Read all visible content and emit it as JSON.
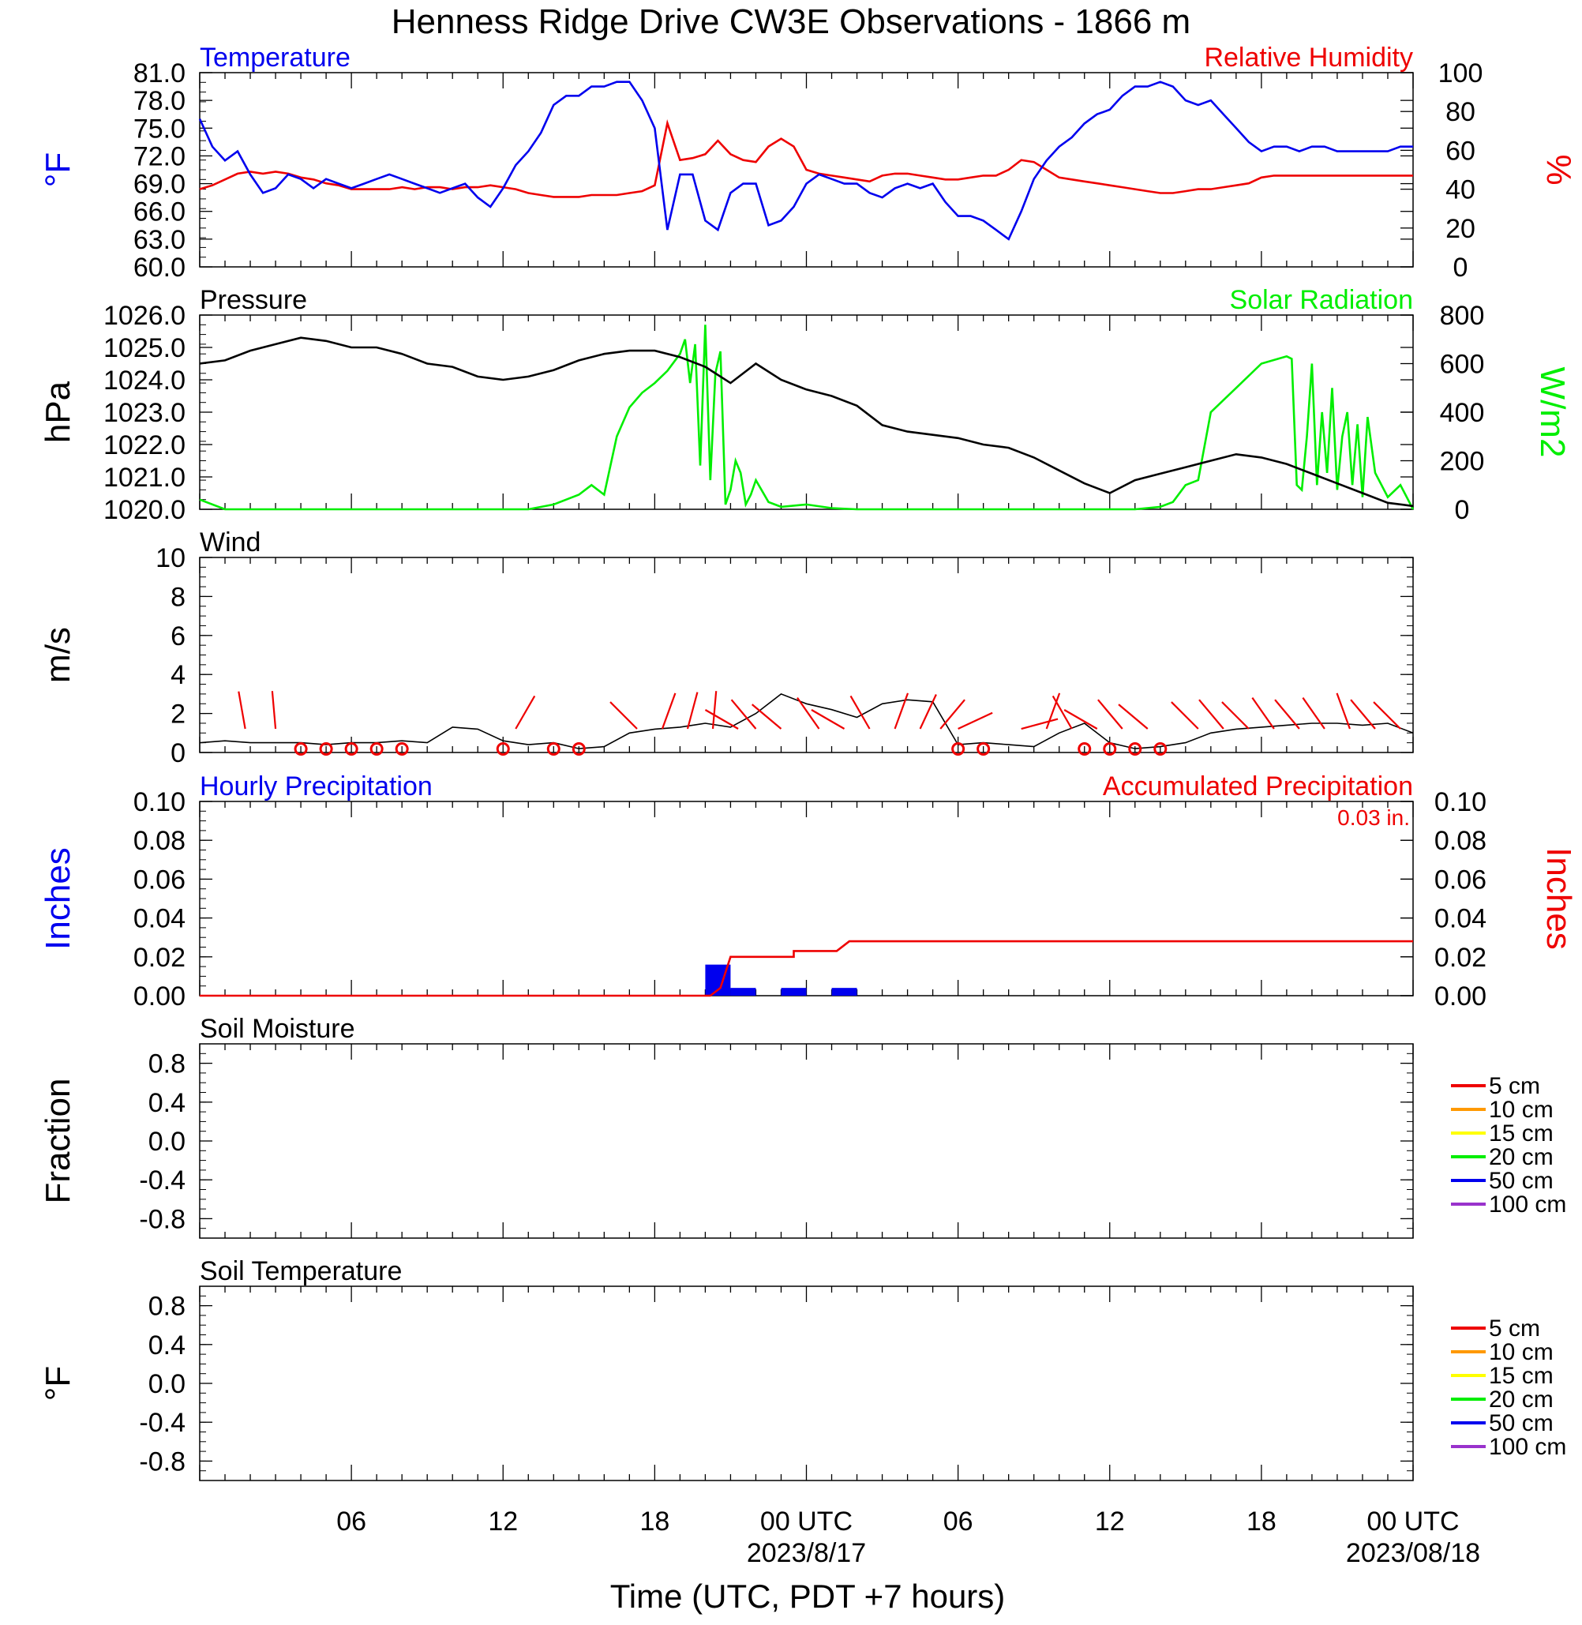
{
  "title": "Henness Ridge Drive CW3E Observations - 1866 m",
  "xlabel": "Time (UTC, PDT +7 hours)",
  "x_axis": {
    "ticks": [
      "06",
      "12",
      "18",
      "00 UTC",
      "06",
      "12",
      "18",
      "00 UTC"
    ],
    "dates": [
      "2023/8/17",
      "2023/08/18"
    ]
  },
  "colors": {
    "blue": "#0000ee",
    "red": "#ee0000",
    "green": "#00ee00",
    "black": "#000000"
  },
  "chart_data": [
    {
      "type": "line",
      "title_left": "Temperature",
      "title_right": "Relative Humidity",
      "ylabel_left": "°F",
      "ylabel_right": "%",
      "y_ticks_left": [
        "81.0",
        "78.0",
        "75.0",
        "72.0",
        "69.0",
        "66.0",
        "63.0",
        "60.0"
      ],
      "y_ticks_right": [
        "100",
        "80",
        "60",
        "40",
        "20",
        "0"
      ],
      "ylim_left": [
        60,
        81
      ],
      "ylim_right": [
        0,
        100
      ],
      "x_hours": [
        0,
        48
      ],
      "series": [
        {
          "name": "Temperature",
          "axis": "left",
          "color": "#0000ee",
          "x": [
            0,
            0.5,
            1,
            1.5,
            2,
            2.5,
            3,
            3.5,
            4,
            4.5,
            5,
            5.5,
            6,
            6.5,
            7,
            7.5,
            8,
            8.5,
            9,
            9.5,
            10,
            10.5,
            11,
            11.5,
            12,
            12.5,
            13,
            13.5,
            14,
            14.5,
            15,
            15.5,
            16,
            16.5,
            17,
            17.5,
            18,
            18.5,
            19,
            19.5,
            20,
            20.5,
            21,
            21.5,
            22,
            22.5,
            23,
            23.5,
            24,
            24.5,
            25,
            25.5,
            26,
            26.5,
            27,
            27.5,
            28,
            28.5,
            29,
            29.5,
            30,
            30.5,
            31,
            31.5,
            32,
            32.5,
            33,
            33.5,
            34,
            34.5,
            35,
            35.5,
            36,
            36.5,
            37,
            37.5,
            38,
            38.5,
            39,
            39.5,
            40,
            40.5,
            41,
            41.5,
            42,
            42.5,
            43,
            43.5,
            44,
            44.5,
            45,
            45.5,
            46,
            46.5,
            47,
            47.5,
            48
          ],
          "values": [
            76,
            73,
            71.5,
            72.5,
            70,
            68,
            68.5,
            70,
            69.5,
            68.5,
            69.5,
            69,
            68.5,
            69,
            69.5,
            70,
            69.5,
            69,
            68.5,
            68,
            68.5,
            69,
            67.5,
            66.5,
            68.5,
            71,
            72.5,
            74.5,
            77.5,
            78.5,
            78.5,
            79.5,
            79.5,
            80,
            80,
            78,
            75,
            64,
            70,
            70,
            65,
            64,
            68,
            69,
            69,
            64.5,
            65,
            66.5,
            69,
            70,
            69.5,
            69,
            69,
            68,
            67.5,
            68.5,
            69,
            68.5,
            69,
            67,
            65.5,
            65.5,
            65,
            64,
            63,
            66,
            69.5,
            71.5,
            73,
            74,
            75.5,
            76.5,
            77,
            78.5,
            79.5,
            79.5,
            80,
            79.5,
            78,
            77.5,
            78,
            76.5,
            75,
            73.5,
            72.5,
            73,
            73,
            72.5,
            73,
            73,
            72.5,
            72.5,
            72.5,
            72.5,
            72.5,
            73,
            73
          ]
        },
        {
          "name": "Relative Humidity",
          "axis": "right",
          "color": "#ee0000",
          "x": [
            0,
            0.5,
            1,
            1.5,
            2,
            2.5,
            3,
            3.5,
            4,
            4.5,
            5,
            5.5,
            6,
            6.5,
            7,
            7.5,
            8,
            8.5,
            9,
            9.5,
            10,
            10.5,
            11,
            11.5,
            12,
            12.5,
            13,
            13.5,
            14,
            14.5,
            15,
            15.5,
            16,
            16.5,
            17,
            17.5,
            18,
            18.5,
            19,
            19.5,
            20,
            20.5,
            21,
            21.5,
            22,
            22.5,
            23,
            23.5,
            24,
            24.5,
            25,
            25.5,
            26,
            26.5,
            27,
            27.5,
            28,
            28.5,
            29,
            29.5,
            30,
            30.5,
            31,
            31.5,
            32,
            32.5,
            33,
            33.5,
            34,
            34.5,
            35,
            35.5,
            36,
            36.5,
            37,
            37.5,
            38,
            38.5,
            39,
            39.5,
            40,
            40.5,
            41,
            41.5,
            42,
            42.5,
            43,
            43.5,
            44,
            44.5,
            45,
            45.5,
            46,
            46.5,
            47,
            47.5,
            48
          ],
          "values": [
            40,
            42,
            45,
            48,
            49,
            48,
            49,
            48,
            46,
            45,
            43,
            42,
            40,
            40,
            40,
            40,
            41,
            40,
            41,
            41,
            40,
            41,
            41,
            42,
            41,
            40,
            38,
            37,
            36,
            36,
            36,
            37,
            37,
            37,
            38,
            39,
            42,
            74,
            55,
            56,
            58,
            65,
            58,
            55,
            54,
            62,
            66,
            62,
            50,
            48,
            47,
            46,
            45,
            44,
            47,
            48,
            48,
            47,
            46,
            45,
            45,
            46,
            47,
            47,
            50,
            55,
            54,
            50,
            46,
            45,
            44,
            43,
            42,
            41,
            40,
            39,
            38,
            38,
            39,
            40,
            40,
            41,
            42,
            43,
            46,
            47,
            47,
            47,
            47,
            47,
            47,
            47,
            47,
            47,
            47,
            47,
            47
          ]
        }
      ]
    },
    {
      "type": "line",
      "title_left": "Pressure",
      "title_right": "Solar Radiation",
      "ylabel_left": "hPa",
      "ylabel_right": "W/m2",
      "y_ticks_left": [
        "1026.0",
        "1025.0",
        "1024.0",
        "1023.0",
        "1022.0",
        "1021.0",
        "1020.0"
      ],
      "y_ticks_right": [
        "800",
        "600",
        "400",
        "200",
        "0"
      ],
      "ylim_left": [
        1020,
        1026
      ],
      "ylim_right": [
        0,
        800
      ],
      "series": [
        {
          "name": "Pressure",
          "axis": "left",
          "color": "#000000",
          "x": [
            0,
            1,
            2,
            3,
            4,
            5,
            6,
            7,
            8,
            9,
            10,
            11,
            12,
            13,
            14,
            15,
            16,
            17,
            18,
            19,
            20,
            21,
            22,
            23,
            24,
            25,
            26,
            27,
            28,
            29,
            30,
            31,
            32,
            33,
            34,
            35,
            36,
            37,
            38,
            39,
            40,
            41,
            42,
            43,
            44,
            45,
            46,
            47,
            48
          ],
          "values": [
            1024.5,
            1024.6,
            1024.9,
            1025.1,
            1025.3,
            1025.2,
            1025,
            1025,
            1024.8,
            1024.5,
            1024.4,
            1024.1,
            1024,
            1024.1,
            1024.3,
            1024.6,
            1024.8,
            1024.9,
            1024.9,
            1024.7,
            1024.4,
            1023.9,
            1024.5,
            1024,
            1023.7,
            1023.5,
            1023.2,
            1022.6,
            1022.4,
            1022.3,
            1022.2,
            1022,
            1021.9,
            1021.6,
            1021.2,
            1020.8,
            1020.5,
            1020.9,
            1021.1,
            1021.3,
            1021.5,
            1021.7,
            1021.6,
            1021.4,
            1021.1,
            1020.8,
            1020.5,
            1020.2,
            1020.1
          ]
        },
        {
          "name": "Solar Radiation",
          "axis": "right",
          "color": "#00ee00",
          "x": [
            0,
            1,
            2,
            3,
            4,
            5,
            6,
            7,
            8,
            9,
            10,
            11,
            12,
            13,
            14,
            14.5,
            15,
            15.5,
            16,
            16.5,
            17,
            17.5,
            18,
            18.5,
            19,
            19.2,
            19.4,
            19.6,
            19.8,
            20,
            20.2,
            20.4,
            20.6,
            20.8,
            21,
            21.2,
            21.4,
            21.6,
            21.8,
            22,
            22.5,
            23,
            24,
            25,
            26,
            27,
            28,
            29,
            30,
            31,
            32,
            33,
            34,
            35,
            36,
            37,
            38,
            38.5,
            39,
            39.5,
            40,
            41,
            42,
            43,
            43.2,
            43.4,
            43.6,
            43.8,
            44,
            44.2,
            44.4,
            44.6,
            44.8,
            45,
            45.2,
            45.4,
            45.6,
            45.8,
            46,
            46.2,
            46.5,
            47,
            47.5,
            48
          ],
          "values": [
            40,
            0,
            0,
            0,
            0,
            0,
            0,
            0,
            0,
            0,
            0,
            0,
            0,
            0,
            20,
            40,
            60,
            100,
            60,
            300,
            420,
            480,
            520,
            570,
            640,
            700,
            520,
            680,
            180,
            760,
            120,
            560,
            650,
            20,
            80,
            200,
            150,
            20,
            60,
            120,
            30,
            10,
            20,
            5,
            0,
            0,
            0,
            0,
            0,
            0,
            0,
            0,
            0,
            0,
            0,
            0,
            10,
            30,
            100,
            120,
            400,
            500,
            600,
            630,
            620,
            100,
            80,
            300,
            600,
            100,
            400,
            150,
            500,
            80,
            300,
            400,
            100,
            350,
            50,
            380,
            150,
            50,
            100,
            0
          ]
        }
      ]
    },
    {
      "type": "line",
      "title_left": "Wind",
      "ylabel_left": "m/s",
      "y_ticks_left": [
        "10",
        "8",
        "6",
        "4",
        "2",
        "0"
      ],
      "ylim_left": [
        0,
        10
      ],
      "series": [
        {
          "name": "Wind",
          "axis": "left",
          "color": "#000000",
          "x": [
            0,
            1,
            2,
            3,
            4,
            5,
            6,
            7,
            8,
            9,
            10,
            11,
            12,
            13,
            14,
            15,
            16,
            17,
            18,
            19,
            20,
            21,
            22,
            23,
            24,
            25,
            26,
            27,
            28,
            29,
            30,
            31,
            32,
            33,
            34,
            35,
            36,
            37,
            38,
            39,
            40,
            41,
            42,
            43,
            44,
            45,
            46,
            47,
            48
          ],
          "values": [
            0.5,
            0.6,
            0.5,
            0.5,
            0.5,
            0.4,
            0.5,
            0.5,
            0.6,
            0.5,
            1.3,
            1.2,
            0.6,
            0.4,
            0.5,
            0.2,
            0.3,
            1.0,
            1.2,
            1.3,
            1.5,
            1.3,
            2.0,
            3.0,
            2.5,
            2.2,
            1.8,
            2.5,
            2.7,
            2.6,
            0.4,
            0.5,
            0.4,
            0.3,
            1.0,
            1.5,
            0.5,
            0.2,
            0.3,
            0.5,
            1.0,
            1.2,
            1.3,
            1.4,
            1.5,
            1.5,
            1.4,
            1.5,
            1.0
          ],
          "barbs_hours": [
            1.8,
            3,
            12.5,
            17.3,
            18.3,
            19.3,
            20.3,
            21.3,
            22,
            23,
            24.5,
            25.5,
            26.5,
            27.5,
            28.5,
            29.3,
            30,
            32.5,
            33.5,
            34.5,
            35.5,
            36.5,
            37.5,
            39.5,
            40.5,
            41.5,
            42.5,
            43.5,
            44.5,
            45.5,
            46.5,
            47.5
          ],
          "calm_hours": [
            4,
            5,
            6,
            7,
            8,
            12,
            14,
            15,
            30,
            31,
            35,
            36,
            37,
            38
          ]
        }
      ]
    },
    {
      "type": "bar",
      "title_left": "Hourly Precipitation",
      "title_right": "Accumulated Precipitation",
      "annotation": "0.03 in.",
      "ylabel_left": "Inches",
      "ylabel_right": "Inches",
      "y_ticks_left": [
        "0.10",
        "0.08",
        "0.06",
        "0.04",
        "0.02",
        "0.00"
      ],
      "y_ticks_right": [
        "0.10",
        "0.08",
        "0.06",
        "0.04",
        "0.02",
        "0.00"
      ],
      "ylim_left": [
        0,
        0.1
      ],
      "ylim_right": [
        0,
        0.1
      ],
      "series": [
        {
          "name": "Hourly Precipitation",
          "color": "#0000ee",
          "bars": [
            {
              "start": 20,
              "end": 21,
              "value": 0.016
            },
            {
              "start": 21,
              "end": 22,
              "value": 0.004
            },
            {
              "start": 23,
              "end": 24,
              "value": 0.004
            },
            {
              "start": 25,
              "end": 26,
              "value": 0.004
            }
          ]
        },
        {
          "name": "Accumulated Precipitation",
          "color": "#ee0000",
          "x": [
            0,
            20.2,
            20.6,
            21,
            23.5,
            23.5,
            25.2,
            25.7,
            27.5,
            27.5,
            48
          ],
          "values": [
            0,
            0,
            0.004,
            0.02,
            0.02,
            0.023,
            0.023,
            0.028,
            0.028,
            0.028,
            0.028
          ]
        }
      ]
    },
    {
      "type": "line",
      "title_left": "Soil Moisture",
      "ylabel_left": "Fraction",
      "y_ticks_left": [
        "0.8",
        "0.4",
        "0.0",
        "-0.4",
        "-0.8"
      ],
      "ylim_left": [
        -1,
        1
      ],
      "legend_position": "right",
      "series": [
        {
          "name": "5 cm",
          "color": "#ee0000"
        },
        {
          "name": "10 cm",
          "color": "#ff9900"
        },
        {
          "name": "15 cm",
          "color": "#ffff00"
        },
        {
          "name": "20 cm",
          "color": "#00ee00"
        },
        {
          "name": "50 cm",
          "color": "#0000ee"
        },
        {
          "name": "100 cm",
          "color": "#9932cc"
        }
      ]
    },
    {
      "type": "line",
      "title_left": "Soil Temperature",
      "ylabel_left": "°F",
      "y_ticks_left": [
        "0.8",
        "0.4",
        "0.0",
        "-0.4",
        "-0.8"
      ],
      "ylim_left": [
        -1,
        1
      ],
      "legend_position": "right",
      "series": [
        {
          "name": "5 cm",
          "color": "#ee0000"
        },
        {
          "name": "10 cm",
          "color": "#ff9900"
        },
        {
          "name": "15 cm",
          "color": "#ffff00"
        },
        {
          "name": "20 cm",
          "color": "#00ee00"
        },
        {
          "name": "50 cm",
          "color": "#0000ee"
        },
        {
          "name": "100 cm",
          "color": "#9932cc"
        }
      ]
    }
  ]
}
